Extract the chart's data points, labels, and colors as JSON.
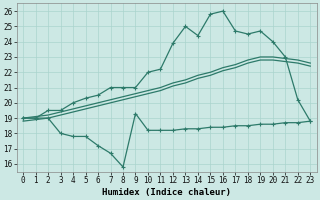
{
  "xlabel": "Humidex (Indice chaleur)",
  "bg_color": "#cce8e4",
  "grid_color": "#aad4ce",
  "line_color": "#2d7a6a",
  "xlim": [
    -0.5,
    23.5
  ],
  "ylim": [
    15.5,
    26.5
  ],
  "xticks": [
    0,
    1,
    2,
    3,
    4,
    5,
    6,
    7,
    8,
    9,
    10,
    11,
    12,
    13,
    14,
    15,
    16,
    17,
    18,
    19,
    20,
    21,
    22,
    23
  ],
  "yticks": [
    16,
    17,
    18,
    19,
    20,
    21,
    22,
    23,
    24,
    25,
    26
  ],
  "line1_x": [
    0,
    1,
    2,
    3,
    4,
    5,
    6,
    7,
    8,
    9,
    10,
    11,
    12,
    13,
    14,
    15,
    16,
    17,
    18,
    19,
    20,
    21,
    22,
    23
  ],
  "line1_y": [
    19,
    19,
    19.5,
    19.5,
    20,
    20.3,
    20.5,
    21,
    21,
    21,
    22,
    22.2,
    23.9,
    25,
    24.4,
    25.8,
    26.0,
    24.7,
    24.5,
    24.7,
    24.0,
    23.0,
    20.2,
    18.8
  ],
  "line2a_x": [
    0,
    1,
    2,
    3,
    4,
    5,
    6,
    7,
    8,
    9,
    10,
    11,
    12,
    13,
    14,
    15,
    16,
    17,
    18,
    19,
    20,
    21,
    22,
    23
  ],
  "line2a_y": [
    19.0,
    19.1,
    19.2,
    19.4,
    19.6,
    19.8,
    20.0,
    20.2,
    20.4,
    20.6,
    20.8,
    21.0,
    21.3,
    21.5,
    21.8,
    22.0,
    22.3,
    22.5,
    22.8,
    23.0,
    23.0,
    22.9,
    22.8,
    22.6
  ],
  "line2b_x": [
    0,
    1,
    2,
    3,
    4,
    5,
    6,
    7,
    8,
    9,
    10,
    11,
    12,
    13,
    14,
    15,
    16,
    17,
    18,
    19,
    20,
    21,
    22,
    23
  ],
  "line2b_y": [
    18.8,
    18.9,
    19.0,
    19.2,
    19.4,
    19.6,
    19.8,
    20.0,
    20.2,
    20.4,
    20.6,
    20.8,
    21.1,
    21.3,
    21.6,
    21.8,
    22.1,
    22.3,
    22.6,
    22.8,
    22.8,
    22.7,
    22.6,
    22.4
  ],
  "line3_x": [
    0,
    1,
    2,
    3,
    4,
    5,
    6,
    7,
    8,
    9,
    10,
    11,
    12,
    13,
    14,
    15,
    16,
    17,
    18,
    19,
    20,
    21,
    22,
    23
  ],
  "line3_y": [
    19,
    19,
    19,
    18,
    17.8,
    17.8,
    17.2,
    16.7,
    15.8,
    19.3,
    18.2,
    18.2,
    18.2,
    18.3,
    18.3,
    18.4,
    18.4,
    18.5,
    18.5,
    18.6,
    18.6,
    18.7,
    18.7,
    18.8
  ],
  "lw": 0.9,
  "ms": 3.5
}
